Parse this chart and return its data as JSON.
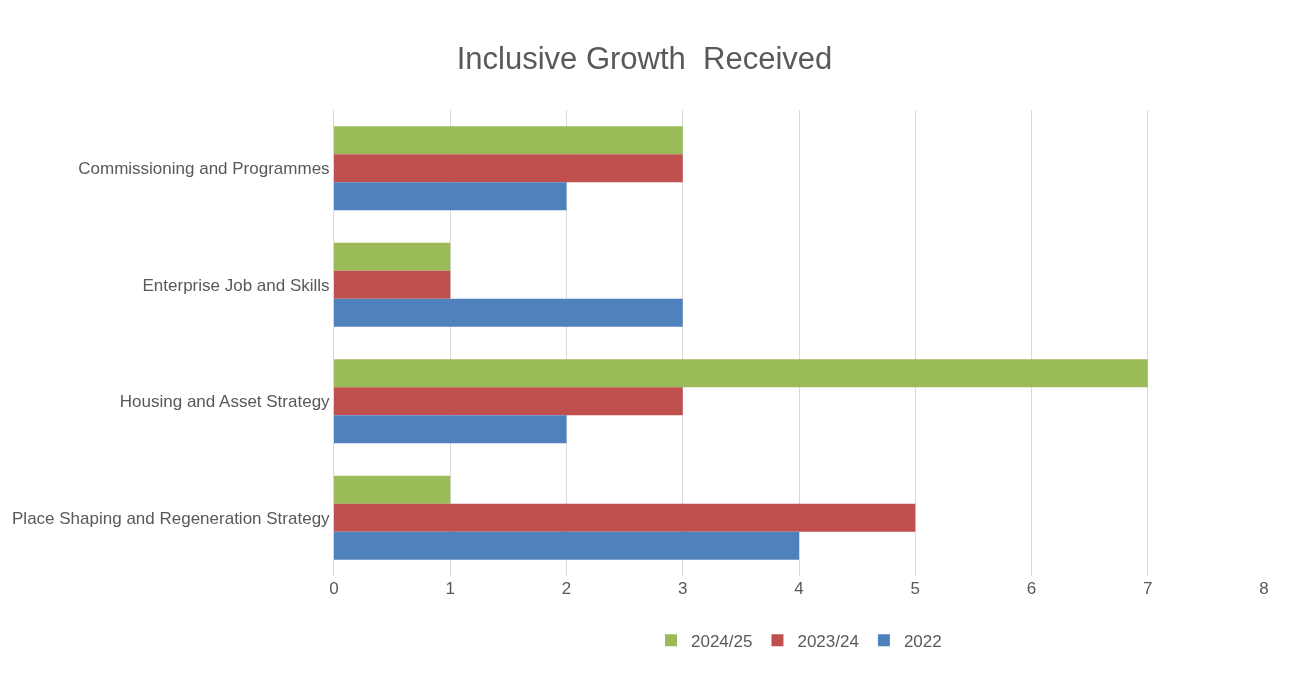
{
  "chart_data": {
    "type": "bar",
    "orientation": "horizontal",
    "title": "Inclusive Growth  Received",
    "categories": [
      "Commissioning and Programmes",
      "Enterprise Job and Skills",
      "Housing and Asset Strategy",
      "Place Shaping and Regeneration Strategy"
    ],
    "series": [
      {
        "name": "2024/25",
        "color": "#9bbb59",
        "values": [
          3,
          1,
          7,
          1
        ]
      },
      {
        "name": "2023/24",
        "color": "#c0504d",
        "values": [
          3,
          1,
          3,
          5
        ]
      },
      {
        "name": "2022",
        "color": "#4f81bd",
        "values": [
          2,
          3,
          2,
          4
        ]
      }
    ],
    "xlim": [
      0,
      8
    ],
    "xticks": [
      0,
      1,
      2,
      3,
      4,
      5,
      6,
      7,
      8
    ],
    "grid": "x",
    "legend": "bottom"
  }
}
